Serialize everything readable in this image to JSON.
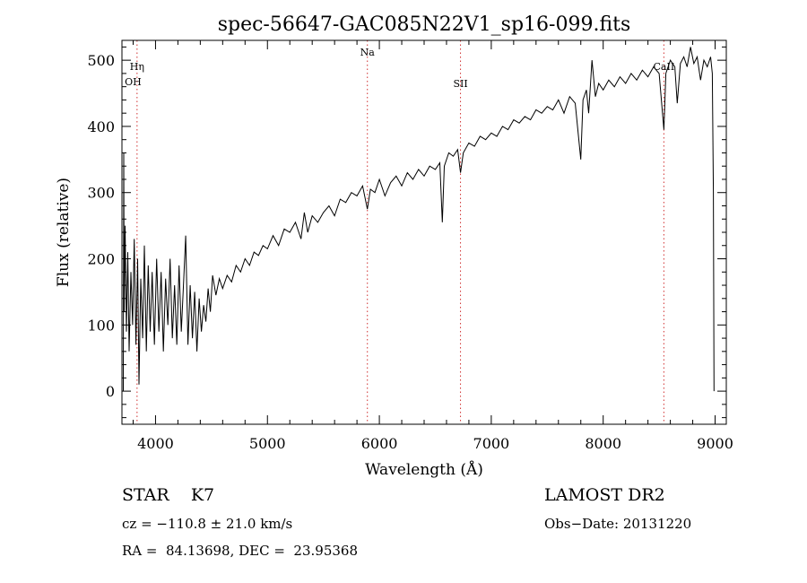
{
  "chart_data": {
    "type": "line",
    "title": "spec-56647-GAC085N22V1_sp16-099.fits",
    "xlabel": "Wavelength (Å)",
    "ylabel": "Flux (relative)",
    "xlim": [
      3700,
      9100
    ],
    "ylim": [
      -50,
      530
    ],
    "x_ticks": [
      4000,
      5000,
      6000,
      7000,
      8000,
      9000
    ],
    "y_ticks": [
      0,
      100,
      200,
      300,
      400,
      500
    ],
    "grid": false,
    "line_color": "#000000",
    "marker_color": "#d03030",
    "spectral_lines": [
      {
        "label": "Hη",
        "wavelength": 3835
      },
      {
        "label": "OH",
        "wavelength": 3800
      },
      {
        "label": "Na",
        "wavelength": 5893
      },
      {
        "label": "SII",
        "wavelength": 6725
      },
      {
        "label": "CaII",
        "wavelength": 8542
      }
    ],
    "series": [
      {
        "values": [
          [
            3712,
            0
          ],
          [
            3716,
            360
          ],
          [
            3720,
            120
          ],
          [
            3728,
            250
          ],
          [
            3740,
            90
          ],
          [
            3752,
            210
          ],
          [
            3764,
            60
          ],
          [
            3780,
            180
          ],
          [
            3795,
            100
          ],
          [
            3810,
            230
          ],
          [
            3825,
            70
          ],
          [
            3840,
            200
          ],
          [
            3852,
            10
          ],
          [
            3868,
            170
          ],
          [
            3885,
            80
          ],
          [
            3900,
            220
          ],
          [
            3918,
            60
          ],
          [
            3935,
            190
          ],
          [
            3952,
            90
          ],
          [
            3970,
            180
          ],
          [
            3990,
            70
          ],
          [
            4010,
            200
          ],
          [
            4030,
            90
          ],
          [
            4050,
            180
          ],
          [
            4070,
            60
          ],
          [
            4090,
            170
          ],
          [
            4110,
            100
          ],
          [
            4130,
            200
          ],
          [
            4150,
            80
          ],
          [
            4170,
            160
          ],
          [
            4190,
            70
          ],
          [
            4210,
            190
          ],
          [
            4230,
            90
          ],
          [
            4250,
            160
          ],
          [
            4270,
            235
          ],
          [
            4290,
            70
          ],
          [
            4310,
            160
          ],
          [
            4330,
            80
          ],
          [
            4350,
            150
          ],
          [
            4370,
            60
          ],
          [
            4390,
            140
          ],
          [
            4410,
            90
          ],
          [
            4430,
            130
          ],
          [
            4450,
            105
          ],
          [
            4470,
            155
          ],
          [
            4490,
            120
          ],
          [
            4510,
            175
          ],
          [
            4540,
            145
          ],
          [
            4570,
            170
          ],
          [
            4600,
            155
          ],
          [
            4640,
            175
          ],
          [
            4680,
            165
          ],
          [
            4720,
            190
          ],
          [
            4760,
            180
          ],
          [
            4800,
            200
          ],
          [
            4840,
            190
          ],
          [
            4880,
            210
          ],
          [
            4920,
            205
          ],
          [
            4960,
            220
          ],
          [
            5000,
            215
          ],
          [
            5050,
            235
          ],
          [
            5100,
            220
          ],
          [
            5150,
            245
          ],
          [
            5200,
            240
          ],
          [
            5250,
            255
          ],
          [
            5300,
            230
          ],
          [
            5330,
            270
          ],
          [
            5360,
            240
          ],
          [
            5400,
            265
          ],
          [
            5450,
            255
          ],
          [
            5500,
            270
          ],
          [
            5550,
            280
          ],
          [
            5600,
            265
          ],
          [
            5650,
            290
          ],
          [
            5700,
            285
          ],
          [
            5750,
            300
          ],
          [
            5800,
            295
          ],
          [
            5850,
            310
          ],
          [
            5893,
            275
          ],
          [
            5920,
            305
          ],
          [
            5960,
            300
          ],
          [
            6000,
            320
          ],
          [
            6050,
            295
          ],
          [
            6100,
            315
          ],
          [
            6150,
            325
          ],
          [
            6200,
            310
          ],
          [
            6250,
            330
          ],
          [
            6300,
            320
          ],
          [
            6350,
            335
          ],
          [
            6400,
            325
          ],
          [
            6450,
            340
          ],
          [
            6500,
            335
          ],
          [
            6540,
            345
          ],
          [
            6563,
            255
          ],
          [
            6580,
            340
          ],
          [
            6620,
            360
          ],
          [
            6660,
            355
          ],
          [
            6700,
            365
          ],
          [
            6725,
            330
          ],
          [
            6750,
            360
          ],
          [
            6800,
            375
          ],
          [
            6850,
            370
          ],
          [
            6900,
            385
          ],
          [
            6950,
            380
          ],
          [
            7000,
            390
          ],
          [
            7050,
            385
          ],
          [
            7100,
            400
          ],
          [
            7150,
            395
          ],
          [
            7200,
            410
          ],
          [
            7250,
            405
          ],
          [
            7300,
            415
          ],
          [
            7350,
            410
          ],
          [
            7400,
            425
          ],
          [
            7450,
            420
          ],
          [
            7500,
            430
          ],
          [
            7550,
            425
          ],
          [
            7600,
            440
          ],
          [
            7650,
            420
          ],
          [
            7700,
            445
          ],
          [
            7750,
            435
          ],
          [
            7800,
            350
          ],
          [
            7820,
            440
          ],
          [
            7850,
            455
          ],
          [
            7870,
            420
          ],
          [
            7900,
            500
          ],
          [
            7930,
            445
          ],
          [
            7960,
            465
          ],
          [
            8000,
            455
          ],
          [
            8050,
            470
          ],
          [
            8100,
            460
          ],
          [
            8150,
            475
          ],
          [
            8200,
            465
          ],
          [
            8250,
            480
          ],
          [
            8300,
            470
          ],
          [
            8350,
            485
          ],
          [
            8400,
            475
          ],
          [
            8450,
            490
          ],
          [
            8500,
            480
          ],
          [
            8542,
            395
          ],
          [
            8560,
            480
          ],
          [
            8600,
            500
          ],
          [
            8640,
            490
          ],
          [
            8662,
            435
          ],
          [
            8690,
            495
          ],
          [
            8720,
            505
          ],
          [
            8750,
            490
          ],
          [
            8780,
            520
          ],
          [
            8810,
            495
          ],
          [
            8840,
            505
          ],
          [
            8870,
            470
          ],
          [
            8900,
            500
          ],
          [
            8930,
            490
          ],
          [
            8960,
            505
          ],
          [
            8975,
            480
          ],
          [
            8985,
            300
          ],
          [
            8990,
            0
          ]
        ]
      }
    ]
  },
  "info": {
    "object_class": "STAR    K7",
    "survey": "LAMOST DR2",
    "cz": "cz = −110.8 ± 21.0 km/s",
    "obs_date": "Obs−Date: 20131220",
    "coords": "RA =  84.13698, DEC =  23.95368"
  }
}
